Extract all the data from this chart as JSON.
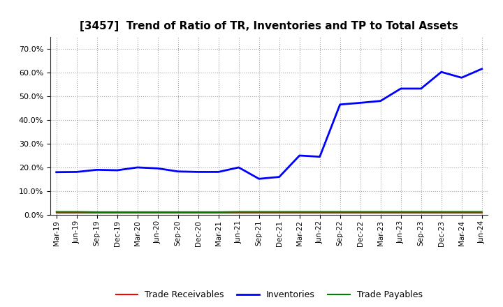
{
  "title": "[3457]  Trend of Ratio of TR, Inventories and TP to Total Assets",
  "xlabels": [
    "Mar-19",
    "Jun-19",
    "Sep-19",
    "Dec-19",
    "Mar-20",
    "Jun-20",
    "Sep-20",
    "Dec-20",
    "Mar-21",
    "Jun-21",
    "Sep-21",
    "Dec-21",
    "Mar-22",
    "Jun-22",
    "Sep-22",
    "Dec-22",
    "Mar-23",
    "Jun-23",
    "Sep-23",
    "Dec-23",
    "Mar-24",
    "Jun-24"
  ],
  "inventories": [
    0.18,
    0.181,
    0.19,
    0.188,
    0.2,
    0.196,
    0.183,
    0.181,
    0.181,
    0.2,
    0.152,
    0.16,
    0.25,
    0.245,
    0.465,
    0.472,
    0.48,
    0.532,
    0.532,
    0.602,
    0.578,
    0.615
  ],
  "trade_receivables": [
    0.008,
    0.008,
    0.008,
    0.008,
    0.008,
    0.008,
    0.008,
    0.008,
    0.008,
    0.008,
    0.008,
    0.008,
    0.008,
    0.008,
    0.008,
    0.008,
    0.008,
    0.008,
    0.008,
    0.008,
    0.008,
    0.008
  ],
  "trade_payables": [
    0.013,
    0.013,
    0.012,
    0.012,
    0.012,
    0.012,
    0.012,
    0.012,
    0.012,
    0.013,
    0.013,
    0.013,
    0.013,
    0.013,
    0.013,
    0.013,
    0.013,
    0.013,
    0.013,
    0.013,
    0.013,
    0.013
  ],
  "inv_color": "#0000FF",
  "tr_color": "#FF0000",
  "tp_color": "#008000",
  "background_color": "#FFFFFF",
  "plot_bg_color": "#FFFFFF",
  "grid_color": "#999999",
  "ylim": [
    0.0,
    0.75
  ],
  "yticks": [
    0.0,
    0.1,
    0.2,
    0.3,
    0.4,
    0.5,
    0.6,
    0.7
  ],
  "legend_labels": [
    "Trade Receivables",
    "Inventories",
    "Trade Payables"
  ]
}
